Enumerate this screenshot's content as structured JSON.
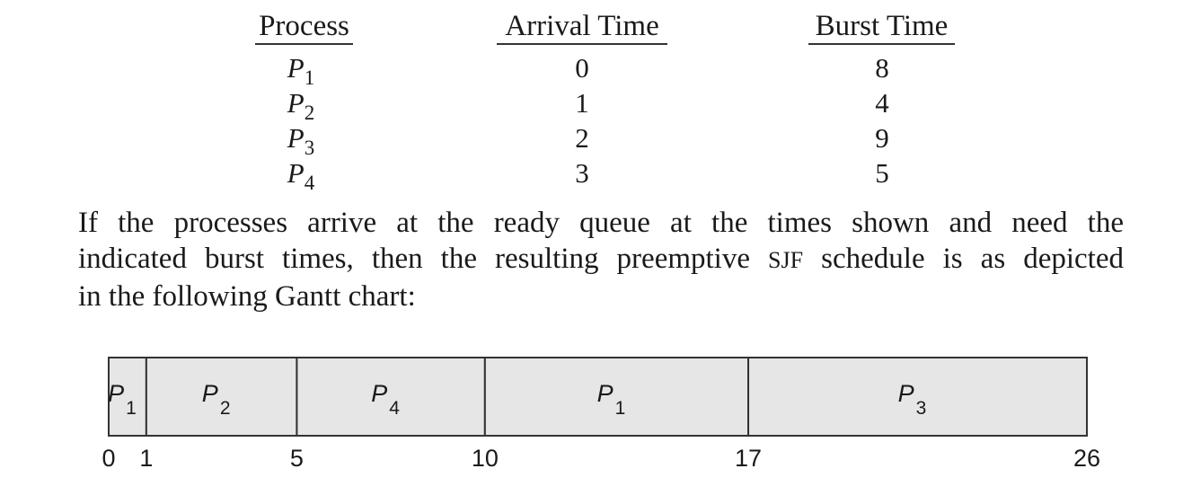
{
  "table": {
    "headers": {
      "process": "Process",
      "arrival": "Arrival Time",
      "burst": "Burst Time"
    },
    "rows": [
      {
        "name": "P",
        "sub": "1",
        "arrival": "0",
        "burst": "8"
      },
      {
        "name": "P",
        "sub": "2",
        "arrival": "1",
        "burst": "4"
      },
      {
        "name": "P",
        "sub": "3",
        "arrival": "2",
        "burst": "9"
      },
      {
        "name": "P",
        "sub": "4",
        "arrival": "3",
        "burst": "5"
      }
    ]
  },
  "paragraph": {
    "line1": "If the processes arrive at the ready queue at the times shown and need the",
    "line2a": "indicated burst times, then the resulting preemptive ",
    "line2b": "SJF",
    "line2c": " schedule is as depicted",
    "line3": "in the following Gantt chart:"
  },
  "chart_data": {
    "type": "gantt",
    "segments": [
      {
        "label": "P",
        "sub": "1",
        "start": 0,
        "end": 1
      },
      {
        "label": "P",
        "sub": "2",
        "start": 1,
        "end": 5
      },
      {
        "label": "P",
        "sub": "4",
        "start": 5,
        "end": 10
      },
      {
        "label": "P",
        "sub": "1",
        "start": 10,
        "end": 17
      },
      {
        "label": "P",
        "sub": "3",
        "start": 17,
        "end": 26
      }
    ],
    "ticks": [
      0,
      1,
      5,
      10,
      17,
      26
    ],
    "fill": "#e6e6e6",
    "stroke": "#333333"
  }
}
